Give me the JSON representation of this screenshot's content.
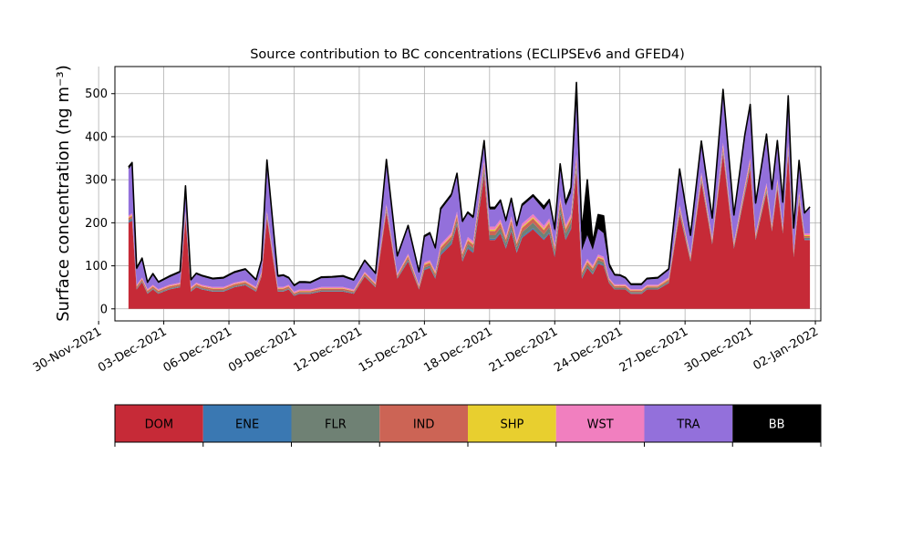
{
  "chart_data": {
    "type": "area",
    "title": "Source contribution to BC concentrations (ECLIPSEv6 and GFED4)",
    "ylabel": "Surface concentration (ng m⁻³)",
    "xlabel": "",
    "ylim": [
      -28,
      563
    ],
    "xlim": [
      "2021-11-30T18:00",
      "2022-01-02T06:00"
    ],
    "yticks": [
      0,
      100,
      200,
      300,
      400,
      500
    ],
    "xticks": [
      "2021-11-30",
      "2021-12-03",
      "2021-12-06",
      "2021-12-09",
      "2021-12-12",
      "2021-12-15",
      "2021-12-18",
      "2021-12-21",
      "2021-12-24",
      "2021-12-27",
      "2021-12-30",
      "2022-01-02"
    ],
    "xtick_labels": [
      "30-Nov-2021",
      "03-Dec-2021",
      "06-Dec-2021",
      "09-Dec-2021",
      "12-Dec-2021",
      "15-Dec-2021",
      "18-Dec-2021",
      "21-Dec-2021",
      "24-Dec-2021",
      "27-Dec-2021",
      "30-Dec-2021",
      "02-Jan-2022"
    ],
    "grid": true,
    "legend_position": "bottom",
    "stacked": true,
    "x": [
      "2021-12-01T09:00",
      "2021-12-01T13:00",
      "2021-12-01T18:00",
      "2021-12-02T00:00",
      "2021-12-02T06:00",
      "2021-12-02T12:00",
      "2021-12-02T18:00",
      "2021-12-03T06:00",
      "2021-12-03T18:00",
      "2021-12-04T00:00",
      "2021-12-04T06:00",
      "2021-12-04T12:00",
      "2021-12-04T18:00",
      "2021-12-05T06:00",
      "2021-12-05T18:00",
      "2021-12-06T06:00",
      "2021-12-06T18:00",
      "2021-12-07T06:00",
      "2021-12-07T12:00",
      "2021-12-07T18:00",
      "2021-12-08T06:00",
      "2021-12-08T12:00",
      "2021-12-08T18:00",
      "2021-12-09T00:00",
      "2021-12-09T06:00",
      "2021-12-09T12:00",
      "2021-12-09T18:00",
      "2021-12-10T06:00",
      "2021-12-10T18:00",
      "2021-12-11T06:00",
      "2021-12-11T18:00",
      "2021-12-12T06:00",
      "2021-12-12T18:00",
      "2021-12-13T06:00",
      "2021-12-13T18:00",
      "2021-12-14T06:00",
      "2021-12-14T18:00",
      "2021-12-15T00:00",
      "2021-12-15T06:00",
      "2021-12-15T12:00",
      "2021-12-15T18:00",
      "2021-12-16T06:00",
      "2021-12-16T12:00",
      "2021-12-16T18:00",
      "2021-12-17T00:00",
      "2021-12-17T06:00",
      "2021-12-17T18:00",
      "2021-12-18T00:00",
      "2021-12-18T06:00",
      "2021-12-18T12:00",
      "2021-12-18T18:00",
      "2021-12-19T00:00",
      "2021-12-19T06:00",
      "2021-12-19T12:00",
      "2021-12-20T00:00",
      "2021-12-20T12:00",
      "2021-12-20T18:00",
      "2021-12-21T00:00",
      "2021-12-21T06:00",
      "2021-12-21T12:00",
      "2021-12-21T18:00",
      "2021-12-22T00:00",
      "2021-12-22T06:00",
      "2021-12-22T12:00",
      "2021-12-22T18:00",
      "2021-12-23T00:00",
      "2021-12-23T06:00",
      "2021-12-23T12:00",
      "2021-12-23T18:00",
      "2021-12-24T00:00",
      "2021-12-24T06:00",
      "2021-12-24T12:00",
      "2021-12-24T18:00",
      "2021-12-25T00:00",
      "2021-12-25T06:00",
      "2021-12-25T18:00",
      "2021-12-26T06:00",
      "2021-12-26T18:00",
      "2021-12-27T06:00",
      "2021-12-27T18:00",
      "2021-12-28T06:00",
      "2021-12-28T18:00",
      "2021-12-29T06:00",
      "2021-12-29T18:00",
      "2021-12-30T00:00",
      "2021-12-30T06:00",
      "2021-12-30T18:00",
      "2021-12-31T00:00",
      "2021-12-31T06:00",
      "2021-12-31T12:00",
      "2021-12-31T18:00",
      "2022-01-01T00:00",
      "2022-01-01T06:00",
      "2022-01-01T12:00",
      "2022-01-01T18:00"
    ],
    "series": [
      {
        "name": "DOM",
        "color": "#c62a37",
        "values": [
          200,
          205,
          45,
          62,
          35,
          45,
          35,
          45,
          50,
          210,
          40,
          50,
          45,
          40,
          40,
          50,
          55,
          40,
          75,
          210,
          40,
          40,
          45,
          30,
          35,
          35,
          35,
          40,
          40,
          40,
          35,
          75,
          50,
          225,
          70,
          110,
          45,
          90,
          95,
          70,
          125,
          150,
          195,
          110,
          140,
          130,
          310,
          160,
          160,
          175,
          140,
          180,
          130,
          165,
          185,
          160,
          175,
          120,
          220,
          160,
          185,
          320,
          70,
          95,
          80,
          105,
          100,
          60,
          45,
          45,
          45,
          35,
          35,
          35,
          45,
          45,
          60,
          220,
          110,
          295,
          150,
          360,
          140,
          265,
          325,
          160,
          270,
          180,
          280,
          175,
          360,
          120,
          250,
          160,
          160
        ]
      },
      {
        "name": "ENE",
        "color": "#3a78b2",
        "values": [
          3,
          3,
          1,
          1,
          1,
          1,
          1,
          1,
          1,
          3,
          1,
          1,
          1,
          1,
          1,
          1,
          1,
          1,
          1,
          3,
          1,
          1,
          1,
          1,
          1,
          1,
          1,
          1,
          1,
          1,
          1,
          1,
          1,
          3,
          1,
          2,
          1,
          2,
          2,
          2,
          3,
          3,
          3,
          2,
          3,
          3,
          4,
          3,
          3,
          3,
          3,
          3,
          3,
          3,
          3,
          3,
          3,
          3,
          4,
          3,
          3,
          4,
          2,
          2,
          2,
          2,
          2,
          1,
          1,
          1,
          1,
          1,
          1,
          1,
          1,
          1,
          1,
          3,
          2,
          3,
          2,
          4,
          2,
          3,
          4,
          2,
          3,
          2,
          3,
          2,
          4,
          2,
          3,
          2,
          2
        ]
      },
      {
        "name": "FLR",
        "color": "#6f8174",
        "values": [
          3,
          3,
          2,
          2,
          2,
          2,
          2,
          2,
          2,
          3,
          2,
          2,
          2,
          2,
          2,
          2,
          2,
          2,
          2,
          3,
          2,
          2,
          2,
          2,
          2,
          2,
          2,
          2,
          2,
          2,
          2,
          2,
          2,
          3,
          2,
          4,
          2,
          4,
          4,
          4,
          6,
          8,
          8,
          6,
          8,
          8,
          12,
          8,
          8,
          10,
          10,
          12,
          10,
          10,
          12,
          10,
          12,
          8,
          14,
          12,
          12,
          12,
          6,
          6,
          6,
          6,
          6,
          3,
          3,
          3,
          3,
          3,
          3,
          3,
          3,
          3,
          3,
          4,
          3,
          4,
          3,
          4,
          3,
          4,
          4,
          3,
          4,
          3,
          4,
          3,
          4,
          3,
          4,
          3,
          3
        ]
      },
      {
        "name": "IND",
        "color": "#cc6455",
        "values": [
          5,
          5,
          4,
          4,
          4,
          4,
          4,
          4,
          4,
          5,
          4,
          4,
          4,
          4,
          4,
          4,
          4,
          4,
          4,
          5,
          4,
          4,
          4,
          3,
          3,
          3,
          3,
          4,
          4,
          4,
          3,
          4,
          4,
          6,
          4,
          6,
          4,
          6,
          6,
          6,
          8,
          8,
          10,
          8,
          8,
          8,
          10,
          10,
          10,
          10,
          8,
          10,
          8,
          10,
          10,
          10,
          10,
          8,
          12,
          10,
          10,
          12,
          6,
          6,
          6,
          6,
          6,
          4,
          4,
          4,
          4,
          3,
          3,
          3,
          3,
          3,
          4,
          6,
          4,
          6,
          4,
          8,
          4,
          6,
          8,
          4,
          6,
          4,
          6,
          4,
          8,
          4,
          6,
          4,
          4
        ]
      },
      {
        "name": "SHP",
        "color": "#e8cf2f",
        "values": [
          2,
          2,
          1,
          1,
          1,
          1,
          1,
          1,
          1,
          2,
          1,
          1,
          1,
          1,
          1,
          1,
          1,
          1,
          1,
          2,
          1,
          1,
          1,
          1,
          1,
          1,
          1,
          1,
          1,
          1,
          1,
          1,
          1,
          2,
          1,
          2,
          1,
          2,
          2,
          2,
          2,
          2,
          3,
          2,
          2,
          2,
          3,
          3,
          3,
          3,
          2,
          3,
          2,
          3,
          3,
          3,
          3,
          2,
          3,
          3,
          3,
          3,
          2,
          2,
          2,
          2,
          2,
          1,
          1,
          1,
          1,
          1,
          1,
          1,
          1,
          1,
          2,
          3,
          2,
          3,
          2,
          3,
          2,
          3,
          3,
          2,
          3,
          2,
          3,
          2,
          3,
          2,
          3,
          2,
          2
        ]
      },
      {
        "name": "WST",
        "color": "#f17fbf",
        "values": [
          4,
          4,
          3,
          3,
          3,
          3,
          3,
          3,
          3,
          4,
          3,
          3,
          3,
          3,
          3,
          3,
          3,
          3,
          3,
          4,
          3,
          3,
          3,
          3,
          3,
          3,
          3,
          3,
          3,
          3,
          3,
          3,
          3,
          4,
          3,
          4,
          3,
          4,
          4,
          4,
          6,
          6,
          7,
          6,
          6,
          6,
          8,
          7,
          7,
          7,
          6,
          7,
          6,
          7,
          7,
          7,
          7,
          6,
          8,
          7,
          7,
          8,
          5,
          5,
          5,
          5,
          5,
          3,
          3,
          3,
          3,
          3,
          3,
          3,
          3,
          3,
          3,
          5,
          4,
          6,
          4,
          7,
          4,
          6,
          7,
          4,
          6,
          4,
          6,
          4,
          7,
          4,
          6,
          4,
          4
        ]
      },
      {
        "name": "TRA",
        "color": "#9370db",
        "values": [
          108,
          113,
          35,
          40,
          13,
          22,
          14,
          17,
          23,
          54,
          14,
          19,
          19,
          17,
          19,
          22,
          24,
          14,
          24,
          114,
          23,
          25,
          14,
          12,
          15,
          15,
          14,
          20,
          21,
          23,
          20,
          24,
          19,
          99,
          39,
          62,
          27,
          58,
          60,
          50,
          79,
          85,
          84,
          66,
          54,
          53,
          39,
          40,
          40,
          40,
          32,
          37,
          30,
          40,
          40,
          37,
          38,
          33,
          68,
          45,
          50,
          120,
          45,
          55,
          36,
          60,
          55,
          25,
          20,
          19,
          13,
          9,
          9,
          9,
          12,
          14,
          17,
          79,
          43,
          68,
          43,
          120,
          60,
          113,
          120,
          68,
          110,
          80,
          85,
          55,
          105,
          50,
          70,
          45,
          60
        ]
      },
      {
        "name": "BB",
        "color": "#000000",
        "values": [
          5,
          5,
          4,
          5,
          3,
          4,
          3,
          3,
          3,
          5,
          3,
          3,
          3,
          3,
          3,
          3,
          3,
          3,
          3,
          5,
          3,
          3,
          3,
          3,
          3,
          3,
          3,
          3,
          3,
          3,
          3,
          3,
          3,
          5,
          3,
          4,
          3,
          4,
          4,
          4,
          5,
          5,
          5,
          4,
          4,
          4,
          5,
          5,
          5,
          5,
          5,
          5,
          5,
          5,
          5,
          8,
          6,
          6,
          8,
          7,
          12,
          47,
          44,
          129,
          18,
          33,
          40,
          8,
          3,
          3,
          3,
          3,
          3,
          3,
          3,
          3,
          3,
          5,
          3,
          5,
          3,
          4,
          3,
          4,
          4,
          3,
          4,
          3,
          4,
          3,
          4,
          3,
          3,
          3,
          2
        ]
      }
    ]
  },
  "legend": {
    "items": [
      {
        "label": "DOM",
        "color": "#c62a37",
        "text_color": "#000000"
      },
      {
        "label": "ENE",
        "color": "#3a78b2",
        "text_color": "#000000"
      },
      {
        "label": "FLR",
        "color": "#6f8174",
        "text_color": "#000000"
      },
      {
        "label": "IND",
        "color": "#cc6455",
        "text_color": "#000000"
      },
      {
        "label": "SHP",
        "color": "#e8cf2f",
        "text_color": "#000000"
      },
      {
        "label": "WST",
        "color": "#f17fbf",
        "text_color": "#000000"
      },
      {
        "label": "TRA",
        "color": "#9370db",
        "text_color": "#000000"
      },
      {
        "label": "BB",
        "color": "#000000",
        "text_color": "#ffffff"
      }
    ]
  }
}
